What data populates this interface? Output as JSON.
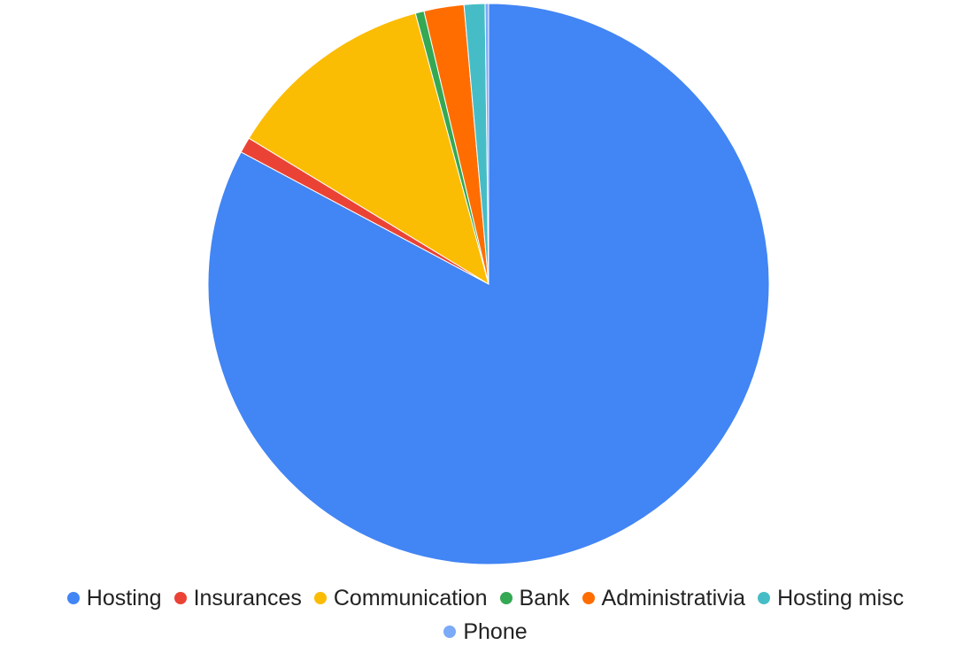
{
  "chart_data": {
    "type": "pie",
    "title": "",
    "legend_position": "bottom",
    "start_angle": "12 o'clock, clockwise",
    "categories": [
      "Hosting",
      "Insurances",
      "Communication",
      "Bank",
      "Administrativia",
      "Hosting misc",
      "Phone"
    ],
    "values": [
      82.8,
      0.9,
      12.1,
      0.5,
      2.3,
      1.2,
      0.2
    ],
    "colors": [
      "#4285F4",
      "#EA4335",
      "#FBBC04",
      "#34A853",
      "#FF6D01",
      "#46BDC6",
      "#7BAAF7"
    ]
  }
}
